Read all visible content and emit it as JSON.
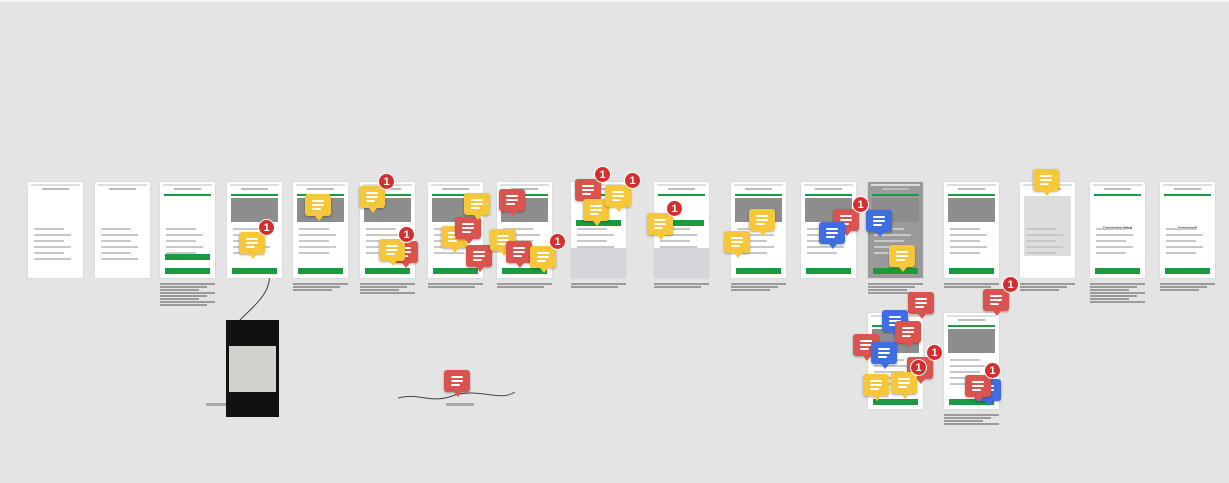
{
  "canvas": {
    "background": "#e4e4e4"
  },
  "colors": {
    "accent_green": "#1b9a3f",
    "comment_yellow": "#f6c73b",
    "comment_red": "#d9534f",
    "comment_blue": "#3f6ee0",
    "badge_red": "#d32f2f"
  },
  "frames": [
    {
      "kind": "list"
    },
    {
      "kind": "list"
    },
    {
      "kind": "intro"
    },
    {
      "kind": "step"
    },
    {
      "kind": "step"
    },
    {
      "kind": "step"
    },
    {
      "kind": "step"
    },
    {
      "kind": "step"
    },
    {
      "kind": "keyboard"
    },
    {
      "kind": "keyboard"
    },
    {
      "kind": "step"
    },
    {
      "kind": "step"
    },
    {
      "kind": "dark"
    },
    {
      "kind": "step"
    },
    {
      "kind": "blank"
    },
    {
      "kind": "result",
      "title": "Connecting failed"
    },
    {
      "kind": "result",
      "title": "Connected!"
    },
    {
      "kind": "step"
    },
    {
      "kind": "step"
    }
  ],
  "comments": [
    {
      "color": "yellow",
      "badge": "1"
    },
    {
      "color": "yellow"
    },
    {
      "color": "yellow",
      "badge": "1"
    },
    {
      "color": "red"
    },
    {
      "color": "yellow",
      "badge": "1"
    },
    {
      "color": "yellow"
    },
    {
      "color": "red"
    },
    {
      "color": "yellow"
    },
    {
      "color": "red"
    },
    {
      "color": "red"
    },
    {
      "color": "yellow"
    },
    {
      "color": "red"
    },
    {
      "color": "yellow",
      "badge": "1"
    },
    {
      "color": "red",
      "badge": "1"
    },
    {
      "color": "yellow"
    },
    {
      "color": "yellow",
      "badge": "1"
    },
    {
      "color": "yellow",
      "badge": "1"
    },
    {
      "color": "yellow"
    },
    {
      "color": "yellow"
    },
    {
      "color": "red",
      "badge": "1"
    },
    {
      "color": "blue"
    },
    {
      "color": "blue"
    },
    {
      "color": "yellow"
    },
    {
      "color": "yellow"
    },
    {
      "color": "red"
    },
    {
      "color": "red",
      "badge": "1"
    },
    {
      "color": "blue"
    },
    {
      "color": "red"
    },
    {
      "color": "red"
    },
    {
      "color": "blue"
    },
    {
      "color": "red",
      "badge": "1"
    },
    {
      "color": "yellow"
    },
    {
      "color": "yellow",
      "badge": "1"
    },
    {
      "color": "blue"
    },
    {
      "color": "red",
      "badge": "1"
    },
    {
      "color": "red"
    }
  ]
}
